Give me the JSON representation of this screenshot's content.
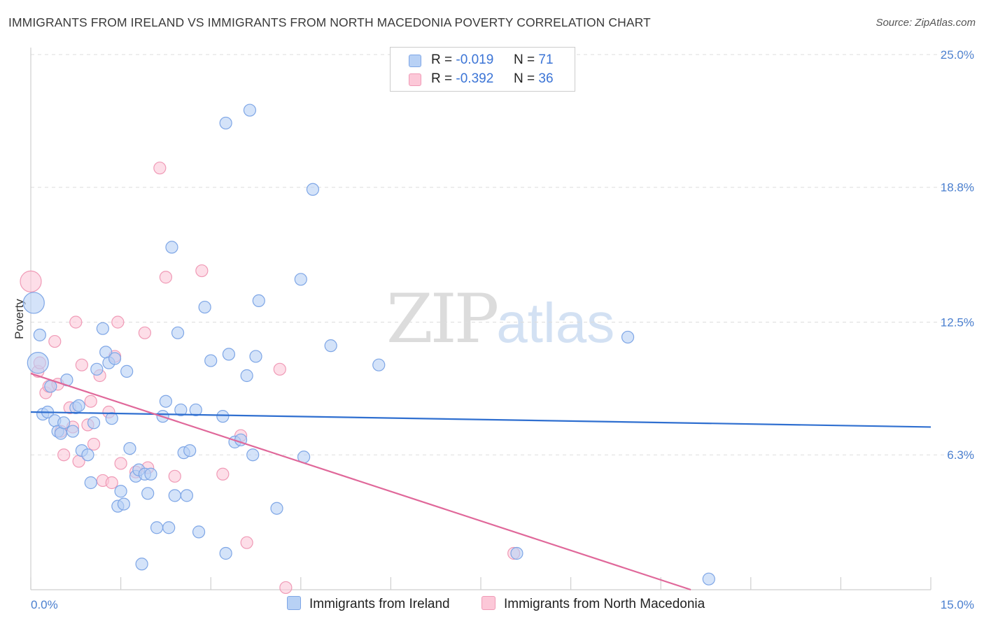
{
  "title": "IMMIGRANTS FROM IRELAND VS IMMIGRANTS FROM NORTH MACEDONIA POVERTY CORRELATION CHART",
  "source": "Source: ZipAtlas.com",
  "watermark": {
    "zip": "ZIP",
    "atlas": "atlas"
  },
  "legend": {
    "r_label": "R =",
    "n_label": "N =",
    "rows": [
      {
        "r": "-0.019",
        "n": "71",
        "fill": "#b8d1f5",
        "stroke": "#7ea6e6"
      },
      {
        "r": "-0.392",
        "n": "36",
        "fill": "#fcc8d8",
        "stroke": "#f09ab6"
      }
    ]
  },
  "chart_data": {
    "type": "scatter",
    "title": "IMMIGRANTS FROM IRELAND VS IMMIGRANTS FROM NORTH MACEDONIA POVERTY CORRELATION CHART",
    "xlabel": "",
    "ylabel": "Poverty",
    "xlim": [
      0,
      15
    ],
    "ylim": [
      0,
      25
    ],
    "x_ticks": [
      "0.0%",
      "15.0%"
    ],
    "y_ticks": [
      {
        "value": 6.3,
        "label": "6.3%"
      },
      {
        "value": 12.5,
        "label": "12.5%"
      },
      {
        "value": 18.8,
        "label": "18.8%"
      },
      {
        "value": 25.0,
        "label": "25.0%"
      }
    ],
    "grid": "horizontal dashed",
    "legend_position": "top-center",
    "series": [
      {
        "name": "Immigrants from Ireland",
        "color": "#7ea6e6",
        "fill": "#b8d1f5",
        "line_color": "#2f6fd0",
        "trend": {
          "x": [
            0,
            15
          ],
          "y": [
            8.3,
            7.6
          ]
        },
        "points": [
          {
            "x": 0.05,
            "y": 13.4,
            "big": true
          },
          {
            "x": 0.12,
            "y": 10.6,
            "big": true
          },
          {
            "x": 0.15,
            "y": 11.9
          },
          {
            "x": 0.2,
            "y": 8.2
          },
          {
            "x": 0.28,
            "y": 8.3
          },
          {
            "x": 0.33,
            "y": 9.5
          },
          {
            "x": 0.4,
            "y": 7.9
          },
          {
            "x": 0.45,
            "y": 7.4
          },
          {
            "x": 0.5,
            "y": 7.3
          },
          {
            "x": 0.55,
            "y": 7.8
          },
          {
            "x": 0.6,
            "y": 9.8
          },
          {
            "x": 0.7,
            "y": 7.4
          },
          {
            "x": 0.75,
            "y": 8.5
          },
          {
            "x": 0.8,
            "y": 8.6
          },
          {
            "x": 0.85,
            "y": 6.5
          },
          {
            "x": 0.95,
            "y": 6.3
          },
          {
            "x": 1.0,
            "y": 5.0
          },
          {
            "x": 1.05,
            "y": 7.8
          },
          {
            "x": 1.1,
            "y": 10.3
          },
          {
            "x": 1.2,
            "y": 12.2
          },
          {
            "x": 1.25,
            "y": 11.1
          },
          {
            "x": 1.3,
            "y": 10.6
          },
          {
            "x": 1.35,
            "y": 8.0
          },
          {
            "x": 1.4,
            "y": 10.8
          },
          {
            "x": 1.45,
            "y": 3.9
          },
          {
            "x": 1.5,
            "y": 4.6
          },
          {
            "x": 1.55,
            "y": 4.0
          },
          {
            "x": 1.6,
            "y": 10.2
          },
          {
            "x": 1.65,
            "y": 6.6
          },
          {
            "x": 1.75,
            "y": 5.3
          },
          {
            "x": 1.8,
            "y": 5.6
          },
          {
            "x": 1.85,
            "y": 1.2
          },
          {
            "x": 1.9,
            "y": 5.4
          },
          {
            "x": 1.95,
            "y": 4.5
          },
          {
            "x": 2.0,
            "y": 5.4
          },
          {
            "x": 2.1,
            "y": 2.9
          },
          {
            "x": 2.2,
            "y": 8.1
          },
          {
            "x": 2.25,
            "y": 8.8
          },
          {
            "x": 2.3,
            "y": 2.9
          },
          {
            "x": 2.35,
            "y": 16.0
          },
          {
            "x": 2.4,
            "y": 4.4
          },
          {
            "x": 2.45,
            "y": 12.0
          },
          {
            "x": 2.5,
            "y": 8.4
          },
          {
            "x": 2.55,
            "y": 6.4
          },
          {
            "x": 2.6,
            "y": 4.4
          },
          {
            "x": 2.65,
            "y": 6.5
          },
          {
            "x": 2.75,
            "y": 8.4
          },
          {
            "x": 2.8,
            "y": 2.7
          },
          {
            "x": 2.9,
            "y": 13.2
          },
          {
            "x": 3.0,
            "y": 10.7
          },
          {
            "x": 3.2,
            "y": 8.1
          },
          {
            "x": 3.25,
            "y": 1.7
          },
          {
            "x": 3.25,
            "y": 21.8
          },
          {
            "x": 3.3,
            "y": 11.0
          },
          {
            "x": 3.4,
            "y": 6.9
          },
          {
            "x": 3.5,
            "y": 7.0
          },
          {
            "x": 3.6,
            "y": 10.0
          },
          {
            "x": 3.65,
            "y": 22.4
          },
          {
            "x": 3.7,
            "y": 6.3
          },
          {
            "x": 3.75,
            "y": 10.9
          },
          {
            "x": 3.8,
            "y": 13.5
          },
          {
            "x": 4.1,
            "y": 3.8
          },
          {
            "x": 4.5,
            "y": 14.5
          },
          {
            "x": 4.55,
            "y": 6.2
          },
          {
            "x": 4.7,
            "y": 18.7
          },
          {
            "x": 5.0,
            "y": 11.4
          },
          {
            "x": 5.8,
            "y": 10.5
          },
          {
            "x": 8.1,
            "y": 1.7
          },
          {
            "x": 9.95,
            "y": 11.8
          },
          {
            "x": 11.3,
            "y": 0.5
          }
        ]
      },
      {
        "name": "Immigrants from North Macedonia",
        "color": "#f09ab6",
        "fill": "#fcc8d8",
        "line_color": "#e0689a",
        "trend": {
          "x": [
            0,
            11.0
          ],
          "y": [
            10.1,
            0.0
          ]
        },
        "points": [
          {
            "x": 0.0,
            "y": 14.4,
            "big": true
          },
          {
            "x": 0.12,
            "y": 10.2
          },
          {
            "x": 0.15,
            "y": 10.6
          },
          {
            "x": 0.25,
            "y": 9.2
          },
          {
            "x": 0.3,
            "y": 9.5
          },
          {
            "x": 0.4,
            "y": 11.6
          },
          {
            "x": 0.45,
            "y": 9.6
          },
          {
            "x": 0.5,
            "y": 7.4
          },
          {
            "x": 0.55,
            "y": 6.3
          },
          {
            "x": 0.65,
            "y": 8.5
          },
          {
            "x": 0.7,
            "y": 7.6
          },
          {
            "x": 0.75,
            "y": 12.5
          },
          {
            "x": 0.8,
            "y": 6.0
          },
          {
            "x": 0.85,
            "y": 10.5
          },
          {
            "x": 0.95,
            "y": 7.7
          },
          {
            "x": 1.0,
            "y": 8.8
          },
          {
            "x": 1.05,
            "y": 6.8
          },
          {
            "x": 1.15,
            "y": 10.0
          },
          {
            "x": 1.2,
            "y": 5.1
          },
          {
            "x": 1.3,
            "y": 8.3
          },
          {
            "x": 1.35,
            "y": 5.0
          },
          {
            "x": 1.4,
            "y": 10.9
          },
          {
            "x": 1.45,
            "y": 12.5
          },
          {
            "x": 1.5,
            "y": 5.9
          },
          {
            "x": 1.75,
            "y": 5.5
          },
          {
            "x": 1.9,
            "y": 12.0
          },
          {
            "x": 1.95,
            "y": 5.7
          },
          {
            "x": 2.15,
            "y": 19.7
          },
          {
            "x": 2.25,
            "y": 14.6
          },
          {
            "x": 2.4,
            "y": 5.3
          },
          {
            "x": 2.85,
            "y": 14.9
          },
          {
            "x": 3.2,
            "y": 5.4
          },
          {
            "x": 3.5,
            "y": 7.2
          },
          {
            "x": 3.6,
            "y": 2.2
          },
          {
            "x": 4.15,
            "y": 10.3
          },
          {
            "x": 4.25,
            "y": 0.1
          },
          {
            "x": 8.05,
            "y": 1.7
          }
        ]
      }
    ]
  }
}
